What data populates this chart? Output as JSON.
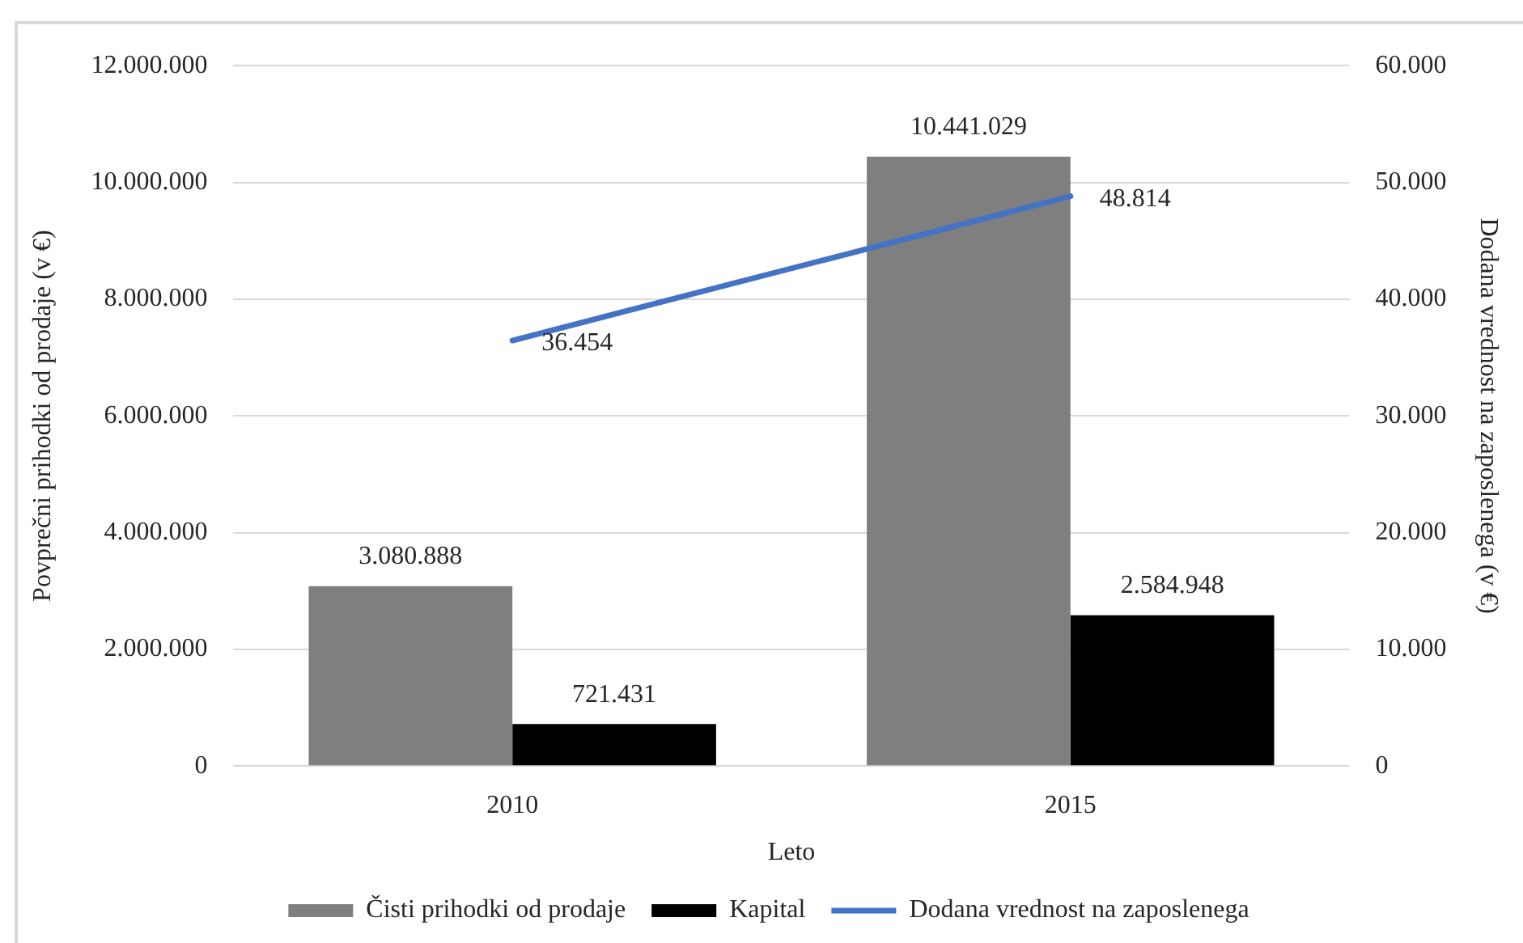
{
  "chart_data": {
    "type": "bar",
    "categories": [
      "2010",
      "2015"
    ],
    "xlabel": "Leto",
    "ylabel": "Povprečni prihodki od prodaje (v €)",
    "y2label": "Dodana vrednost na zaposlenega (v €)",
    "series": [
      {
        "name": "Čisti prihodki od prodaje",
        "color": "#7f7f7f",
        "values": [
          3080888,
          10441029
        ],
        "value_labels": [
          "3.080.888",
          "10.441.029"
        ]
      },
      {
        "name": "Kapital",
        "color": "#000000",
        "values": [
          721431,
          2584948
        ],
        "value_labels": [
          "721.431",
          "2.584.948"
        ]
      },
      {
        "name": "Dodana vrednost na zaposlenega",
        "type": "line",
        "axis": "y2",
        "color": "#4472c4",
        "values": [
          36454,
          48814
        ],
        "value_labels": [
          "36.454",
          "48.814"
        ]
      }
    ],
    "ylim": [
      0,
      12000000
    ],
    "yticks": [
      0,
      {
        "value": 2000000,
        "label": "2.000.000"
      },
      {
        "value": 4000000,
        "label": "4.000.000"
      },
      {
        "value": 6000000,
        "label": "6.000.000"
      },
      {
        "value": 8000000,
        "label": "8.000.000"
      },
      {
        "value": 10000000,
        "label": "10.000.000"
      },
      {
        "value": 12000000,
        "label": "12.000.000"
      }
    ],
    "y2lim": [
      0,
      60000
    ],
    "y2ticks": [
      0,
      {
        "value": 10000,
        "label": "10.000"
      },
      {
        "value": 20000,
        "label": "20.000"
      },
      {
        "value": 30000,
        "label": "30.000"
      },
      {
        "value": 40000,
        "label": "40.000"
      },
      {
        "value": 50000,
        "label": "50.000"
      },
      {
        "value": 60000,
        "label": "60.000"
      }
    ],
    "grid": "y",
    "legend": "bottom",
    "marker": "none",
    "line_style": "solid"
  }
}
